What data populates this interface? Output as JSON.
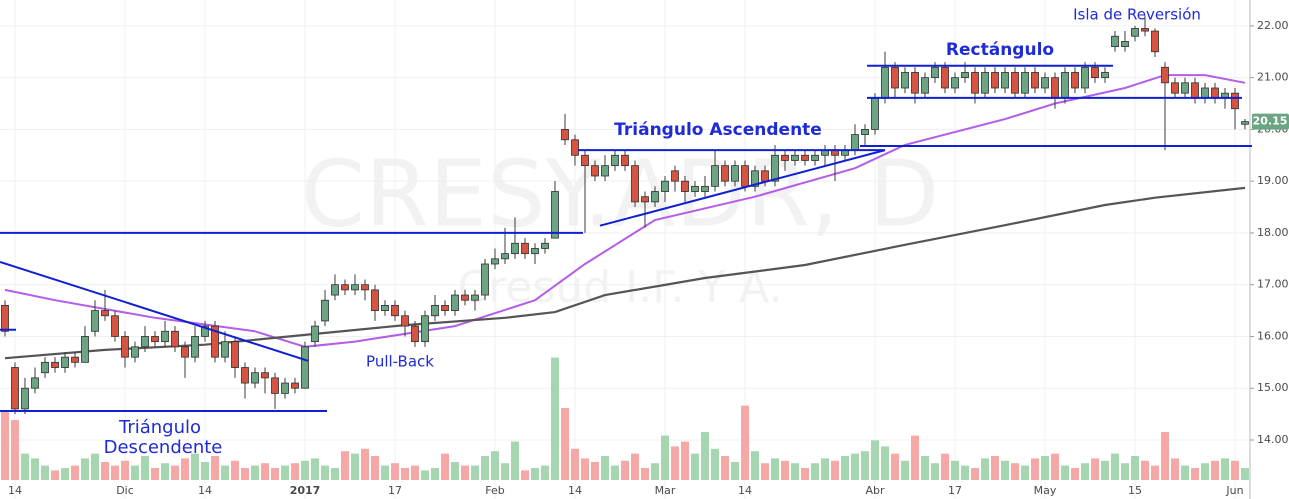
{
  "chart_data": {
    "type": "candlestick",
    "watermark": "CRESY.ADR, D",
    "watermark_sub": "Cresud I.F. Y A.",
    "xlim": [
      -0.5,
      124.5
    ],
    "ylim": [
      12.86,
      22.5
    ],
    "grid": true,
    "yticks": [
      {
        "value": 14,
        "label": "14.00"
      },
      {
        "value": 15,
        "label": "15.00"
      },
      {
        "value": 16,
        "label": "16.00"
      },
      {
        "value": 17,
        "label": "17.00"
      },
      {
        "value": 18,
        "label": "18.00"
      },
      {
        "value": 19,
        "label": "19.00"
      },
      {
        "value": 20,
        "label": "20.00"
      },
      {
        "value": 21,
        "label": "21.00"
      },
      {
        "value": 22,
        "label": "22.00"
      }
    ],
    "xticks": [
      {
        "value": 1,
        "label": "14"
      },
      {
        "value": 12,
        "label": "Dic"
      },
      {
        "value": 20,
        "label": "14"
      },
      {
        "value": 30,
        "label": "2017"
      },
      {
        "value": 39,
        "label": "17"
      },
      {
        "value": 49,
        "label": "Feb"
      },
      {
        "value": 57,
        "label": "14"
      },
      {
        "value": 66,
        "label": "Mar"
      },
      {
        "value": 74,
        "label": "14"
      },
      {
        "value": 87,
        "label": "Abr"
      },
      {
        "value": 95,
        "label": "17"
      },
      {
        "value": 104,
        "label": "May"
      },
      {
        "value": 113,
        "label": "15"
      },
      {
        "value": 123,
        "label": "Jun"
      }
    ],
    "up_color": "#6ba583",
    "down_color": "#d75442",
    "ohlc": [
      [
        16.6,
        16.7,
        16.0,
        16.1
      ],
      [
        15.4,
        15.5,
        14.5,
        14.6
      ],
      [
        14.6,
        15.2,
        14.5,
        15.0
      ],
      [
        15.0,
        15.4,
        14.9,
        15.2
      ],
      [
        15.3,
        15.6,
        15.2,
        15.5
      ],
      [
        15.5,
        15.6,
        15.3,
        15.4
      ],
      [
        15.4,
        15.7,
        15.3,
        15.6
      ],
      [
        15.6,
        15.7,
        15.4,
        15.5
      ],
      [
        15.5,
        16.2,
        15.5,
        16.0
      ],
      [
        16.1,
        16.7,
        16.0,
        16.5
      ],
      [
        16.5,
        16.9,
        16.3,
        16.4
      ],
      [
        16.4,
        16.5,
        15.9,
        16.0
      ],
      [
        16.0,
        16.1,
        15.4,
        15.6
      ],
      [
        15.6,
        15.9,
        15.5,
        15.8
      ],
      [
        15.8,
        16.2,
        15.7,
        16.0
      ],
      [
        16.0,
        16.1,
        15.8,
        15.9
      ],
      [
        15.9,
        16.3,
        15.8,
        16.1
      ],
      [
        16.1,
        16.2,
        15.7,
        15.8
      ],
      [
        15.8,
        15.9,
        15.2,
        15.6
      ],
      [
        15.6,
        16.2,
        15.5,
        16.0
      ],
      [
        16.0,
        16.3,
        15.9,
        16.2
      ],
      [
        16.2,
        16.3,
        15.5,
        15.6
      ],
      [
        15.6,
        16.1,
        15.5,
        15.9
      ],
      [
        15.9,
        16.0,
        15.2,
        15.4
      ],
      [
        15.4,
        15.5,
        14.8,
        15.1
      ],
      [
        15.1,
        15.4,
        15.0,
        15.3
      ],
      [
        15.3,
        15.4,
        14.9,
        15.2
      ],
      [
        15.2,
        15.3,
        14.6,
        14.9
      ],
      [
        14.9,
        15.2,
        14.8,
        15.1
      ],
      [
        15.1,
        15.2,
        14.9,
        15.0
      ],
      [
        15.0,
        15.9,
        15.0,
        15.8
      ],
      [
        15.9,
        16.3,
        15.8,
        16.2
      ],
      [
        16.3,
        16.9,
        16.2,
        16.7
      ],
      [
        16.8,
        17.2,
        16.7,
        17.0
      ],
      [
        17.0,
        17.1,
        16.8,
        16.9
      ],
      [
        16.9,
        17.2,
        16.8,
        17.0
      ],
      [
        17.0,
        17.1,
        16.7,
        16.9
      ],
      [
        16.9,
        17.0,
        16.3,
        16.5
      ],
      [
        16.5,
        16.7,
        16.4,
        16.6
      ],
      [
        16.6,
        16.7,
        16.3,
        16.4
      ],
      [
        16.4,
        16.5,
        16.0,
        16.2
      ],
      [
        16.2,
        16.3,
        15.8,
        15.9
      ],
      [
        15.9,
        16.5,
        15.8,
        16.4
      ],
      [
        16.4,
        16.8,
        16.3,
        16.6
      ],
      [
        16.6,
        16.7,
        16.4,
        16.5
      ],
      [
        16.5,
        16.9,
        16.4,
        16.8
      ],
      [
        16.8,
        16.9,
        16.6,
        16.7
      ],
      [
        16.7,
        16.9,
        16.5,
        16.8
      ],
      [
        16.8,
        17.5,
        16.7,
        17.4
      ],
      [
        17.4,
        17.7,
        17.3,
        17.5
      ],
      [
        17.5,
        18.1,
        17.4,
        17.6
      ],
      [
        17.6,
        18.3,
        17.5,
        17.8
      ],
      [
        17.8,
        17.9,
        17.5,
        17.6
      ],
      [
        17.6,
        17.8,
        17.4,
        17.7
      ],
      [
        17.7,
        17.9,
        17.6,
        17.8
      ],
      [
        17.9,
        19.0,
        17.9,
        18.8
      ],
      [
        20.0,
        20.3,
        19.7,
        19.8
      ],
      [
        19.8,
        19.9,
        19.3,
        19.5
      ],
      [
        19.5,
        19.6,
        18.0,
        19.3
      ],
      [
        19.3,
        19.4,
        19.0,
        19.1
      ],
      [
        19.1,
        19.5,
        19.0,
        19.3
      ],
      [
        19.3,
        19.6,
        19.2,
        19.5
      ],
      [
        19.5,
        19.6,
        19.2,
        19.3
      ],
      [
        19.3,
        19.4,
        18.5,
        18.6
      ],
      [
        18.7,
        18.8,
        18.1,
        18.6
      ],
      [
        18.6,
        18.9,
        18.5,
        18.8
      ],
      [
        18.8,
        19.1,
        18.6,
        19.0
      ],
      [
        19.2,
        19.3,
        18.8,
        19.0
      ],
      [
        19.0,
        19.1,
        18.6,
        18.8
      ],
      [
        18.8,
        19.0,
        18.7,
        18.9
      ],
      [
        18.8,
        19.1,
        18.7,
        18.9
      ],
      [
        18.9,
        19.6,
        18.8,
        19.3
      ],
      [
        19.3,
        19.4,
        18.9,
        19.0
      ],
      [
        19.0,
        19.4,
        18.9,
        19.3
      ],
      [
        19.3,
        19.4,
        18.8,
        18.9
      ],
      [
        18.9,
        19.3,
        18.8,
        19.2
      ],
      [
        19.2,
        19.3,
        18.9,
        19.0
      ],
      [
        19.0,
        19.7,
        18.9,
        19.5
      ],
      [
        19.5,
        19.6,
        19.2,
        19.4
      ],
      [
        19.4,
        19.6,
        19.3,
        19.5
      ],
      [
        19.5,
        19.6,
        19.3,
        19.4
      ],
      [
        19.4,
        19.6,
        19.3,
        19.5
      ],
      [
        19.5,
        19.7,
        19.3,
        19.6
      ],
      [
        19.6,
        19.7,
        19.0,
        19.5
      ],
      [
        19.5,
        19.7,
        19.4,
        19.6
      ],
      [
        19.6,
        20.1,
        19.5,
        19.9
      ],
      [
        19.9,
        20.1,
        19.7,
        20.0
      ],
      [
        20.0,
        20.7,
        19.9,
        20.6
      ],
      [
        20.6,
        21.5,
        20.5,
        21.2
      ],
      [
        21.2,
        21.3,
        20.6,
        20.8
      ],
      [
        20.8,
        21.2,
        20.7,
        21.1
      ],
      [
        21.1,
        21.2,
        20.5,
        20.7
      ],
      [
        20.7,
        21.1,
        20.6,
        21.0
      ],
      [
        21.0,
        21.3,
        20.9,
        21.2
      ],
      [
        21.2,
        21.3,
        20.7,
        20.8
      ],
      [
        20.8,
        21.1,
        20.7,
        21.0
      ],
      [
        21.0,
        21.3,
        20.9,
        21.1
      ],
      [
        21.1,
        21.2,
        20.5,
        20.7
      ],
      [
        20.7,
        21.2,
        20.6,
        21.1
      ],
      [
        21.1,
        21.2,
        20.7,
        20.8
      ],
      [
        20.8,
        21.2,
        20.7,
        21.1
      ],
      [
        21.1,
        21.2,
        20.6,
        20.7
      ],
      [
        20.7,
        21.2,
        20.6,
        21.1
      ],
      [
        21.1,
        21.2,
        20.7,
        20.8
      ],
      [
        20.8,
        21.1,
        20.7,
        21.0
      ],
      [
        21.0,
        21.1,
        20.4,
        20.6
      ],
      [
        20.6,
        21.2,
        20.5,
        21.1
      ],
      [
        21.1,
        21.2,
        20.7,
        20.8
      ],
      [
        20.8,
        21.3,
        20.7,
        21.2
      ],
      [
        21.2,
        21.3,
        20.9,
        21.0
      ],
      [
        21.0,
        21.2,
        20.9,
        21.1
      ],
      [
        21.6,
        21.9,
        21.5,
        21.8
      ],
      [
        21.6,
        21.9,
        21.5,
        21.7
      ],
      [
        21.8,
        22.0,
        21.7,
        21.95
      ],
      [
        21.95,
        22.2,
        21.8,
        21.9
      ],
      [
        21.9,
        21.95,
        21.4,
        21.5
      ],
      [
        21.2,
        21.3,
        19.6,
        20.9
      ],
      [
        20.9,
        21.0,
        20.6,
        20.7
      ],
      [
        20.7,
        21.0,
        20.6,
        20.9
      ],
      [
        20.9,
        21.0,
        20.5,
        20.6
      ],
      [
        20.6,
        20.9,
        20.5,
        20.8
      ],
      [
        20.8,
        20.9,
        20.5,
        20.6
      ],
      [
        20.6,
        20.8,
        20.4,
        20.7
      ],
      [
        20.7,
        20.8,
        20.0,
        20.4
      ],
      [
        20.1,
        20.2,
        20.0,
        20.15
      ]
    ],
    "volume_lim": [
      0,
      400
    ],
    "volume_up_color": "#a5d6b0",
    "volume_down_color": "#f6a8a6",
    "volume": [
      57,
      50,
      22,
      18,
      12,
      8,
      10,
      12,
      18,
      22,
      15,
      12,
      16,
      12,
      20,
      10,
      14,
      12,
      18,
      22,
      15,
      20,
      12,
      16,
      10,
      12,
      14,
      10,
      12,
      14,
      16,
      18,
      12,
      10,
      24,
      22,
      26,
      20,
      12,
      14,
      10,
      12,
      8,
      10,
      22,
      15,
      12,
      12,
      20,
      24,
      14,
      32,
      8,
      10,
      12,
      102,
      60,
      26,
      18,
      15,
      20,
      12,
      16,
      22,
      10,
      14,
      37,
      28,
      32,
      22,
      40,
      26,
      20,
      15,
      62,
      24,
      14,
      18,
      16,
      14,
      10,
      14,
      18,
      16,
      20,
      22,
      24,
      33,
      28,
      22,
      16,
      37,
      20,
      14,
      22,
      16,
      12,
      10,
      18,
      20,
      16,
      14,
      12,
      18,
      20,
      22,
      12,
      10,
      14,
      18,
      16,
      22,
      14,
      20,
      16,
      12,
      40,
      18,
      12,
      10,
      14,
      16,
      18,
      16,
      10
    ],
    "moving_averages": [
      {
        "color": "#b45de6",
        "x": [
          0,
          5,
          15,
          25,
          30,
          35,
          45,
          53,
          58,
          65,
          75,
          85,
          90,
          100,
          105,
          112,
          116,
          120,
          124
        ],
        "values": [
          16.9,
          16.7,
          16.36,
          16.1,
          15.8,
          15.9,
          16.2,
          16.7,
          17.4,
          18.25,
          18.7,
          19.25,
          19.7,
          20.2,
          20.5,
          20.8,
          21.05,
          21.05,
          20.9
        ]
      },
      {
        "color": "#555555",
        "x": [
          0,
          10,
          20,
          30,
          40,
          50,
          55,
          60,
          70,
          80,
          90,
          100,
          110,
          115,
          124
        ],
        "values": [
          15.58,
          15.74,
          15.84,
          16.03,
          16.22,
          16.36,
          16.47,
          16.8,
          17.13,
          17.38,
          17.77,
          18.15,
          18.54,
          18.68,
          18.87
        ]
      }
    ],
    "lines": [
      {
        "color": "#0f1fd4",
        "x": [
          -0.5,
          57.8
        ],
        "values": [
          18.0,
          18.0
        ]
      },
      {
        "color": "#0f1fd4",
        "x": [
          -0.5,
          30.3
        ],
        "values": [
          17.44,
          15.53
        ]
      },
      {
        "color": "#0f1fd4",
        "x": [
          -0.5,
          32.2
        ],
        "values": [
          14.56,
          14.56
        ]
      },
      {
        "color": "#0f1fd4",
        "x": [
          -0.5,
          1.1
        ],
        "values": [
          16.13,
          16.13
        ]
      },
      {
        "color": "#0f1fd4",
        "x": [
          57.3,
          88.0
        ],
        "values": [
          19.6,
          19.6
        ]
      },
      {
        "color": "#0f1fd4",
        "x": [
          59.5,
          88.0
        ],
        "values": [
          18.14,
          19.6
        ]
      },
      {
        "color": "#0f1fd4",
        "x": [
          85.5,
          124.7
        ],
        "values": [
          19.68,
          19.68
        ]
      },
      {
        "color": "#0f1fd4",
        "x": [
          86.2,
          110.8
        ],
        "values": [
          21.23,
          21.23
        ]
      },
      {
        "color": "#0f1fd4",
        "x": [
          86.2,
          123.7
        ],
        "values": [
          20.61,
          20.61
        ]
      }
    ],
    "annotations": [
      "Triángulo Ascendente",
      "Rectángulo",
      "Isla de Reversión",
      "Pull-Back",
      "Triángulo",
      "Descendente"
    ],
    "last_price": {
      "value": 20.15,
      "label": "20.15"
    }
  }
}
